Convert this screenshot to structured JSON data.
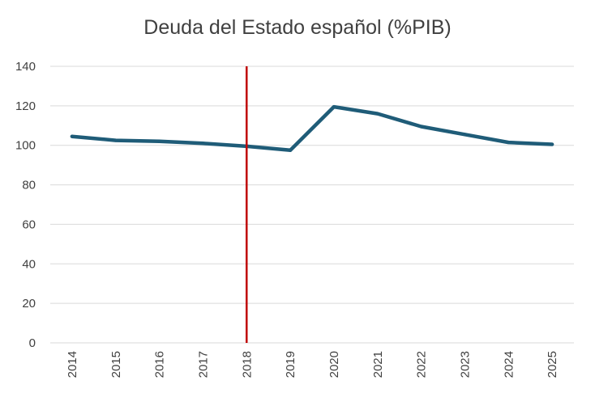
{
  "chart_data": {
    "type": "line",
    "title": "Deuda del Estado español (%PIB)",
    "xlabel": "",
    "ylabel": "",
    "x": [
      "2014",
      "2015",
      "2016",
      "2017",
      "2018",
      "2019",
      "2020",
      "2021",
      "2022",
      "2023",
      "2024",
      "2025"
    ],
    "series": [
      {
        "values": [
          104.5,
          102.5,
          102,
          101,
          99.5,
          97.5,
          119.5,
          116,
          109.5,
          105.5,
          101.5,
          100.5
        ]
      }
    ],
    "ylim": [
      0,
      140
    ],
    "yticks": [
      "0",
      "20",
      "40",
      "60",
      "80",
      "100",
      "120",
      "140"
    ],
    "grid": true,
    "legend": "none",
    "marker_line": {
      "x": "2018",
      "color": "#c00000"
    },
    "colors": {
      "series": "#1f5c78",
      "grid": "#d9d9d9",
      "axis_text": "#404040"
    }
  }
}
